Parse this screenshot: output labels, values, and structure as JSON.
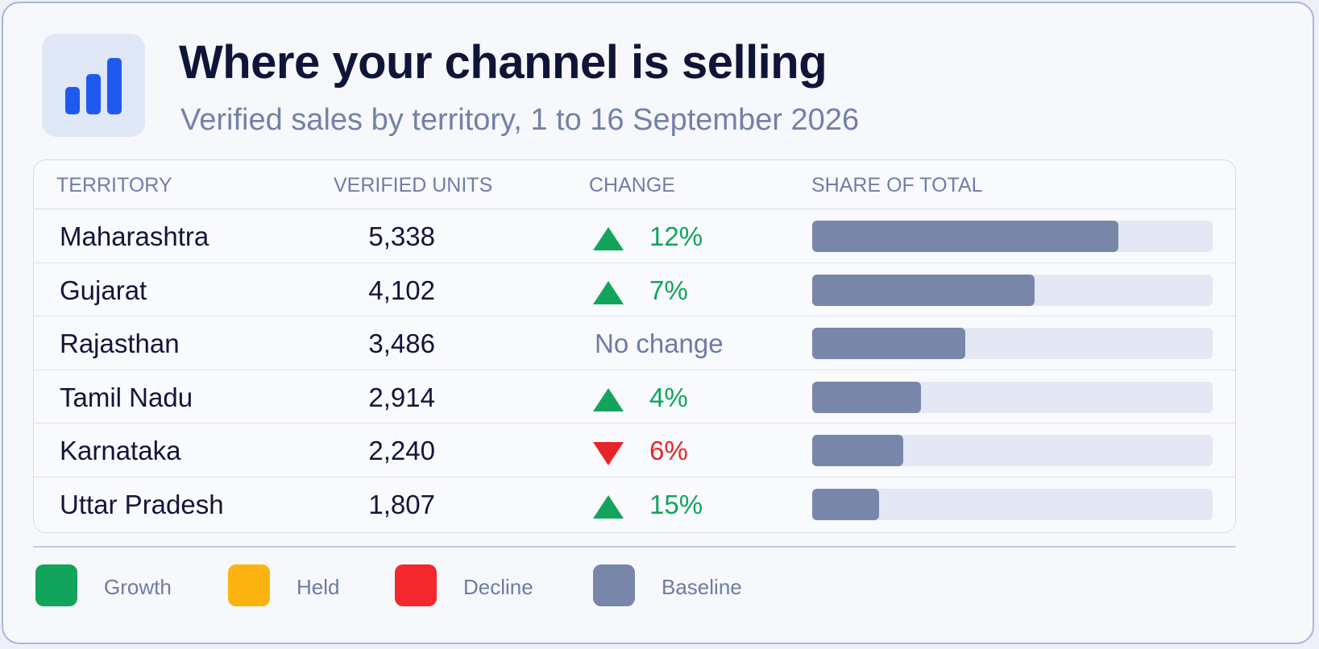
{
  "header": {
    "title": "Where your channel is selling",
    "subtitle": "Verified sales by territory, 1 to 16 September 2026",
    "icon": "bar-chart-icon",
    "accent": "#1f5af0"
  },
  "table": {
    "columns": [
      "TERRITORY",
      "VERIFIED UNITS",
      "CHANGE",
      "SHARE OF TOTAL"
    ],
    "rows": [
      {
        "territory": "Maharashtra",
        "units": "5,338",
        "direction": "up",
        "change": "12%",
        "share": 0.765
      },
      {
        "territory": "Gujarat",
        "units": "4,102",
        "direction": "up",
        "change": "7%",
        "share": 0.555
      },
      {
        "territory": "Rajasthan",
        "units": "3,486",
        "direction": "none",
        "change": "No change",
        "share": 0.383
      },
      {
        "territory": "Tamil Nadu",
        "units": "2,914",
        "direction": "up",
        "change": "4%",
        "share": 0.272
      },
      {
        "territory": "Karnataka",
        "units": "2,240",
        "direction": "down",
        "change": "6%",
        "share": 0.228
      },
      {
        "territory": "Uttar Pradesh",
        "units": "1,807",
        "direction": "up",
        "change": "15%",
        "share": 0.166
      }
    ]
  },
  "legend": {
    "items": [
      {
        "label": "Growth",
        "color": "#13a45b"
      },
      {
        "label": "Held",
        "color": "#fbb40f"
      },
      {
        "label": "Decline",
        "color": "#f2282c"
      },
      {
        "label": "Baseline",
        "color": "#7886aa"
      }
    ]
  }
}
